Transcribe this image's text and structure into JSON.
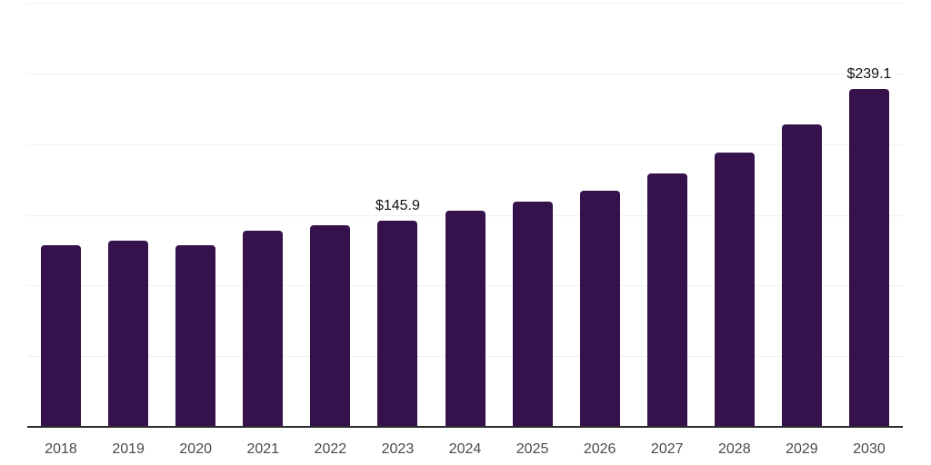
{
  "chart_data": {
    "type": "bar",
    "title": "",
    "xlabel": "",
    "ylabel": "",
    "categories": [
      "2018",
      "2019",
      "2020",
      "2021",
      "2022",
      "2023",
      "2024",
      "2025",
      "2026",
      "2027",
      "2028",
      "2029",
      "2030"
    ],
    "values": [
      128.8,
      132.0,
      128.8,
      138.7,
      142.3,
      145.9,
      152.8,
      159.2,
      167.3,
      179.1,
      194.0,
      213.9,
      239.1
    ],
    "data_labels": {
      "2023": "$145.9",
      "2030": "$239.1"
    },
    "ylim": [
      0,
      300
    ],
    "y_gridline_step": 50,
    "grid": true,
    "legend": false,
    "colors": {
      "bar": "#35124B",
      "gridline": "#F1F1F1",
      "axis_line": "#2B2B2B",
      "tick_label": "#4A4A4A",
      "value_label": "#111111",
      "background": "#FFFFFF"
    }
  }
}
